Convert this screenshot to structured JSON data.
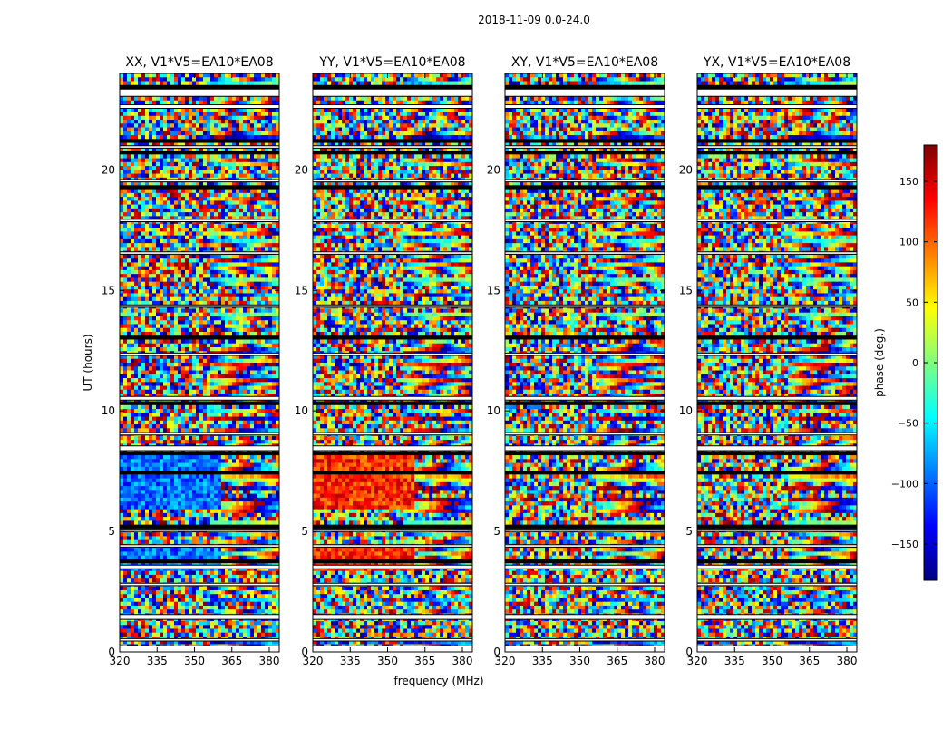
{
  "chart_data": {
    "type": "heatmap",
    "suptitle": "2018-11-09 0.0-24.0",
    "ylabel": "UT (hours)",
    "xlabel": "frequency (MHz)",
    "ylim": [
      0,
      24
    ],
    "xlim": [
      320,
      384
    ],
    "xticks": [
      320,
      335,
      350,
      365,
      380
    ],
    "yticks": [
      0,
      5,
      10,
      15,
      20
    ],
    "colorbar": {
      "label": "phase (deg.)",
      "range": [
        -180,
        180
      ],
      "ticks": [
        150,
        100,
        50,
        0,
        -50,
        -100,
        -150
      ],
      "tick_labels": [
        "150",
        "100",
        "50",
        "0",
        "−50",
        "−100",
        "−150"
      ],
      "colormap": "jet"
    },
    "panels": [
      {
        "title": "XX, V1*V5=EA10*EA08",
        "dominant_phase_6_8h_deg": -95
      },
      {
        "title": "YY, V1*V5=EA10*EA08",
        "dominant_phase_6_8h_deg": 120
      },
      {
        "title": "XY, V1*V5=EA10*EA08",
        "dominant_phase_6_8h_deg": null
      },
      {
        "title": "YX, V1*V5=EA10*EA08",
        "dominant_phase_6_8h_deg": null
      }
    ],
    "flagged_bands_hours": [
      [
        0.0,
        0.25
      ],
      [
        0.45,
        0.55
      ],
      [
        1.35,
        1.55
      ],
      [
        2.75,
        2.85
      ],
      [
        3.45,
        3.6
      ],
      [
        4.35,
        4.45
      ],
      [
        5.0,
        5.1
      ],
      [
        8.35,
        8.55
      ],
      [
        9.0,
        9.1
      ],
      [
        10.45,
        10.6
      ],
      [
        12.3,
        12.4
      ],
      [
        14.3,
        14.4
      ],
      [
        16.5,
        16.6
      ],
      [
        17.85,
        17.95
      ],
      [
        19.5,
        19.6
      ],
      [
        20.9,
        21.0
      ],
      [
        22.55,
        22.7
      ],
      [
        23.05,
        23.35
      ]
    ]
  }
}
